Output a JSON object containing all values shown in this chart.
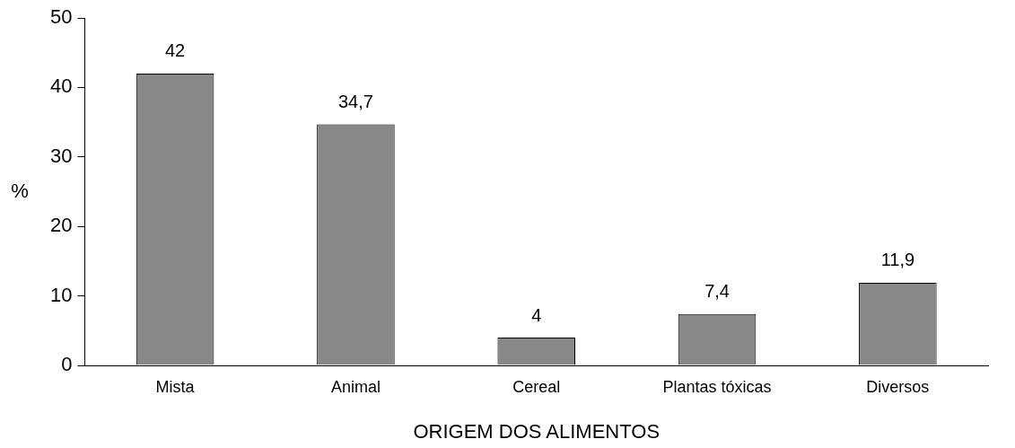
{
  "chart_data": {
    "type": "bar",
    "xlabel": "ORIGEM DOS ALIMENTOS",
    "ylabel": "%",
    "categories": [
      "Mista",
      "Animal",
      "Cereal",
      "Plantas tóxicas",
      "Diversos"
    ],
    "values": [
      42,
      34.7,
      4,
      7.4,
      11.9
    ],
    "value_labels": [
      "42",
      "34,7",
      "4",
      "7,4",
      "11,9"
    ],
    "color": "#888888",
    "ylim": [
      0,
      50
    ],
    "yticks": [
      0,
      10,
      20,
      30,
      40,
      50
    ],
    "grid": false,
    "legend": false
  }
}
